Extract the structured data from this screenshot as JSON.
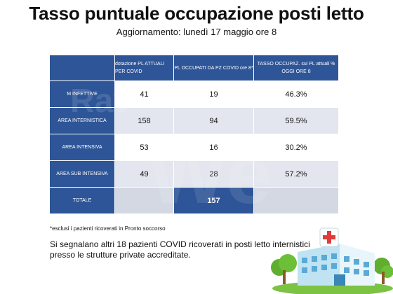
{
  "title": "Tasso puntuale occupazione posti letto",
  "subtitle": "Aggiornamento: lunedì 17 maggio ore 8",
  "table": {
    "headers": [
      "",
      "dotazione PL ATTUALI PER COVID",
      "PL OCCUPATI DA PZ COVID ore 8*",
      "TASSO OCCUPAZ. sui PL attuali % OGGI ORE 8"
    ],
    "rows": [
      {
        "label": "M INFETTIVE",
        "dotazione": "41",
        "occupati": "19",
        "tasso": "46.3%"
      },
      {
        "label": "AREA INTERNISTICA",
        "dotazione": "158",
        "occupati": "94",
        "tasso": "59.5%"
      },
      {
        "label": "AREA INTENSIVA",
        "dotazione": "53",
        "occupati": "16",
        "tasso": "30.2%"
      },
      {
        "label": "AREA SUB INTENSIVA",
        "dotazione": "49",
        "occupati": "28",
        "tasso": "57.2%"
      }
    ],
    "total": {
      "label": "TOTALE",
      "occupati": "157"
    }
  },
  "note": "*esclusi i pazienti ricoverati in Pronto soccorso",
  "info": "Si segnalano altri 18 pazienti COVID ricoverati in posti letto internistici presso le strutture private accreditate.",
  "watermark": "Ravenna Web",
  "colors": {
    "header": "#2e5597",
    "row_alt": "#e3e6ee"
  },
  "illustration": "hospital-building-icon"
}
